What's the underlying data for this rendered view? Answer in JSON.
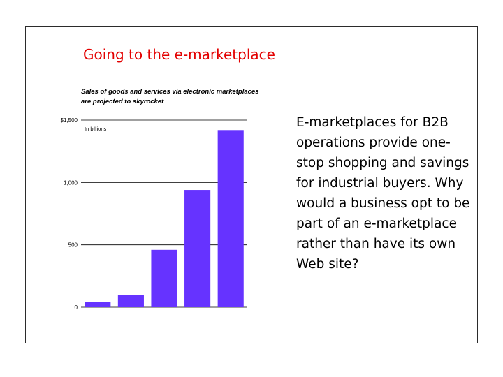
{
  "slide": {
    "title": "Going to the e-marketplace",
    "body": "E-marketplaces for B2B operations provide one-stop shopping and savings for industrial buyers. Why would a business opt to be part of an e-marketplace rather than have its own Web site?"
  },
  "chart_data": {
    "type": "bar",
    "title": "Sales of goods and services via electronic marketplaces are projected to skyrocket",
    "unit_label": "In billions",
    "categories": [
      "",
      "",
      "",
      "",
      ""
    ],
    "values": [
      40,
      100,
      460,
      940,
      1420
    ],
    "yticks": [
      0,
      500,
      1000,
      1500
    ],
    "ytick_labels": [
      "0",
      "500",
      "1,000",
      "$1,500"
    ],
    "ylim": [
      0,
      1500
    ],
    "grid": true,
    "bar_color": "#6633ff"
  }
}
